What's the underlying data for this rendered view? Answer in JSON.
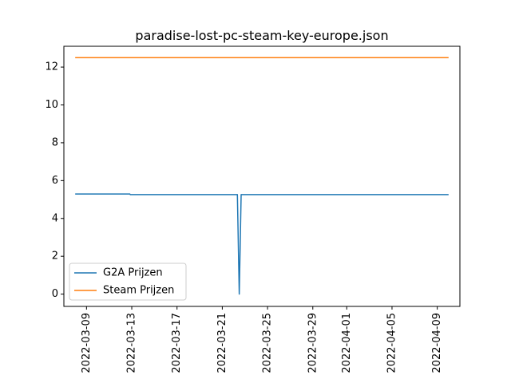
{
  "chart_data": {
    "type": "line",
    "title": "paradise-lost-pc-steam-key-europe.json",
    "xlabel": "",
    "ylabel": "",
    "ylim": [
      -0.65,
      13.1
    ],
    "xlim": [
      "2022-03-07",
      "2022-04-11"
    ],
    "x_ticks": [
      "2022-03-09",
      "2022-03-13",
      "2022-03-17",
      "2022-03-21",
      "2022-03-25",
      "2022-03-29",
      "2022-04-01",
      "2022-04-05",
      "2022-04-09"
    ],
    "y_ticks": [
      0,
      2,
      4,
      6,
      8,
      10,
      12
    ],
    "y_tick_labels": [
      "0",
      "2",
      "4",
      "6",
      "8",
      "10",
      "12"
    ],
    "grid": false,
    "legend_position": "lower-left",
    "series": [
      {
        "name": "G2A Prijzen",
        "color": "#1f77b4",
        "x": [
          "2022-03-08",
          "2022-03-12T20:00",
          "2022-03-12T21:00",
          "2022-03-22T08:00",
          "2022-03-22T12:00",
          "2022-03-22T16:00",
          "2022-04-10"
        ],
        "values": [
          5.29,
          5.29,
          5.26,
          5.26,
          0.0,
          5.26,
          5.26
        ]
      },
      {
        "name": "Steam Prijzen",
        "color": "#ff7f0e",
        "x": [
          "2022-03-08",
          "2022-04-10"
        ],
        "values": [
          12.5,
          12.5
        ]
      }
    ]
  }
}
